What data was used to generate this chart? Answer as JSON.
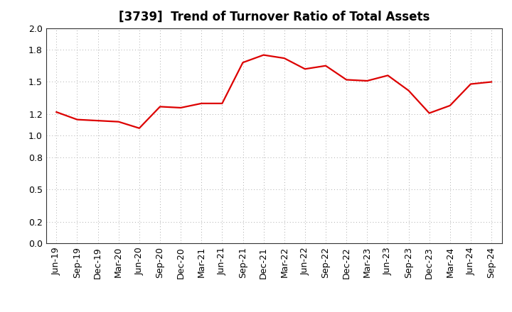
{
  "title": "[3739]  Trend of Turnover Ratio of Total Assets",
  "x_labels": [
    "Jun-19",
    "Sep-19",
    "Dec-19",
    "Mar-20",
    "Jun-20",
    "Sep-20",
    "Dec-20",
    "Mar-21",
    "Jun-21",
    "Sep-21",
    "Dec-21",
    "Mar-22",
    "Jun-22",
    "Sep-22",
    "Dec-22",
    "Mar-23",
    "Jun-23",
    "Sep-23",
    "Dec-23",
    "Mar-24",
    "Jun-24",
    "Sep-24"
  ],
  "y_values": [
    1.22,
    1.15,
    1.14,
    1.13,
    1.07,
    1.27,
    1.26,
    1.3,
    1.3,
    1.68,
    1.75,
    1.72,
    1.62,
    1.65,
    1.52,
    1.51,
    1.56,
    1.42,
    1.21,
    1.28,
    1.48,
    1.5
  ],
  "ylim": [
    0.0,
    2.0
  ],
  "yticks": [
    0.0,
    0.2,
    0.5,
    0.8,
    1.0,
    1.2,
    1.5,
    1.8,
    2.0
  ],
  "line_color": "#dd0000",
  "line_width": 1.6,
  "grid_color": "#aaaaaa",
  "bg_color": "#ffffff",
  "title_fontsize": 12,
  "tick_fontsize": 9,
  "title_fontweight": "bold"
}
